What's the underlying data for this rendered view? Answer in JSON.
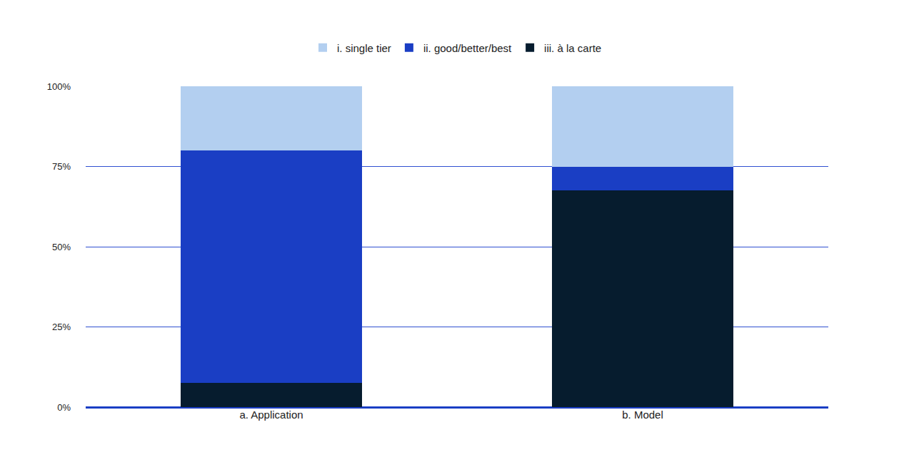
{
  "chart_data": {
    "type": "bar",
    "stacked": true,
    "legend": "top",
    "grid": true,
    "categories": [
      "a. Application",
      "b. Model"
    ],
    "series": [
      {
        "name": "iii. à la carte",
        "color": "#061c2e",
        "values": [
          7.5,
          67.5
        ]
      },
      {
        "name": "ii. good/better/best",
        "color": "#1a3ec4",
        "values": [
          72.5,
          7.5
        ]
      },
      {
        "name": "i. single tier",
        "color": "#b3cff0",
        "values": [
          20,
          25
        ]
      }
    ],
    "ylim": [
      0,
      100
    ],
    "yticks": [
      {
        "value": 0,
        "label": "0%"
      },
      {
        "value": 25,
        "label": "25%"
      },
      {
        "value": 50,
        "label": "50%"
      },
      {
        "value": 75,
        "label": "75%"
      },
      {
        "value": 100,
        "label": "100%"
      }
    ]
  }
}
